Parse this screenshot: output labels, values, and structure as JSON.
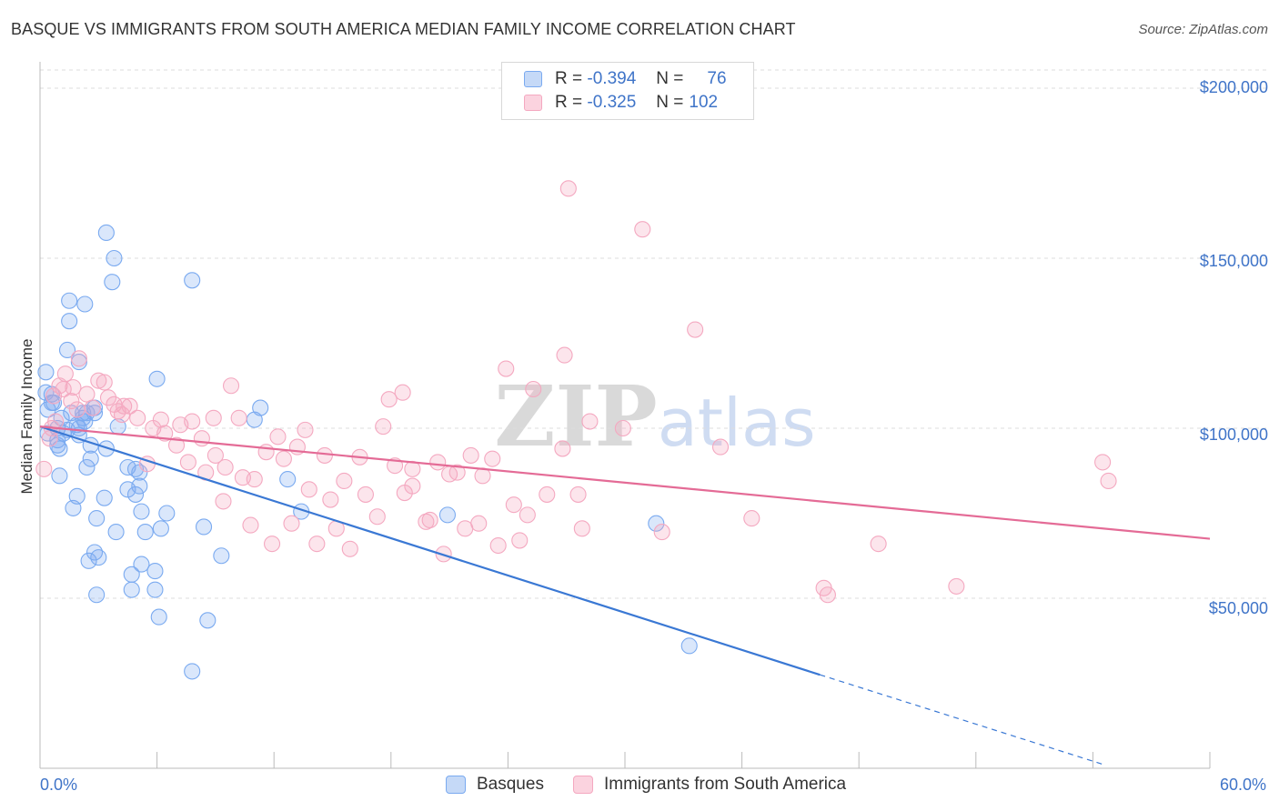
{
  "title": "BASQUE VS IMMIGRANTS FROM SOUTH AMERICA MEDIAN FAMILY INCOME CORRELATION CHART",
  "source": "Source: ZipAtlas.com",
  "watermark": "ZIPatlas",
  "legend_top": {
    "rows": [
      {
        "r_label": "R =",
        "r_value": "-0.394",
        "n_label": "N =",
        "n_value": "76",
        "color": "#7aaaf0"
      },
      {
        "r_label": "R =",
        "r_value": "-0.325",
        "n_label": "N =",
        "n_value": "102",
        "color": "#f4a8c0"
      }
    ]
  },
  "chart_data": {
    "type": "scatter",
    "xlabel": "",
    "ylabel": "Median Family Income",
    "xlim": [
      0,
      60
    ],
    "ylim": [
      0,
      210000
    ],
    "x_tick_labels": [
      "0.0%",
      "60.0%"
    ],
    "y_tick_labels": [
      "$50,000",
      "$100,000",
      "$150,000",
      "$200,000"
    ],
    "y_ticks": [
      50000,
      100000,
      150000,
      200000
    ],
    "grid": true,
    "legend_position": "bottom",
    "series": [
      {
        "name": "Basques",
        "color": "#7aaaf0",
        "line_color": "#3a78d4",
        "trend": {
          "x": [
            0,
            40
          ],
          "y": [
            100500,
            27500
          ],
          "dashed_to": [
            54.6,
            1000
          ]
        },
        "points": [
          [
            0.3,
            116500
          ],
          [
            0.3,
            110500
          ],
          [
            0.4,
            105500
          ],
          [
            0.4,
            98500
          ],
          [
            0.6,
            110000
          ],
          [
            0.6,
            107500
          ],
          [
            0.9,
            100000
          ],
          [
            0.9,
            96500
          ],
          [
            1.0,
            86000
          ],
          [
            1.0,
            94000
          ],
          [
            1.1,
            103000
          ],
          [
            1.2,
            98500
          ],
          [
            1.4,
            123000
          ],
          [
            1.5,
            131500
          ],
          [
            1.5,
            137500
          ],
          [
            1.6,
            104500
          ],
          [
            1.7,
            76500
          ],
          [
            1.9,
            101000
          ],
          [
            2.0,
            119500
          ],
          [
            2.0,
            98000
          ],
          [
            2.2,
            103000
          ],
          [
            2.2,
            104500
          ],
          [
            2.3,
            102000
          ],
          [
            2.3,
            136500
          ],
          [
            2.4,
            104500
          ],
          [
            2.4,
            88500
          ],
          [
            2.5,
            61000
          ],
          [
            2.6,
            91000
          ],
          [
            2.6,
            95000
          ],
          [
            2.8,
            106000
          ],
          [
            2.8,
            104500
          ],
          [
            2.8,
            63500
          ],
          [
            2.9,
            73500
          ],
          [
            3.0,
            62000
          ],
          [
            2.9,
            51000
          ],
          [
            3.3,
            79500
          ],
          [
            3.4,
            157500
          ],
          [
            3.4,
            94000
          ],
          [
            3.7,
            143000
          ],
          [
            3.8,
            150000
          ],
          [
            3.9,
            69500
          ],
          [
            4.0,
            100500
          ],
          [
            4.5,
            88500
          ],
          [
            4.5,
            82000
          ],
          [
            4.7,
            52500
          ],
          [
            4.7,
            57000
          ],
          [
            4.9,
            80500
          ],
          [
            5.1,
            83000
          ],
          [
            5.1,
            87000
          ],
          [
            5.2,
            75500
          ],
          [
            5.2,
            60000
          ],
          [
            5.4,
            69500
          ],
          [
            5.9,
            58000
          ],
          [
            5.9,
            52500
          ],
          [
            6.0,
            114500
          ],
          [
            6.1,
            44500
          ],
          [
            6.2,
            70500
          ],
          [
            6.5,
            75000
          ],
          [
            7.8,
            143500
          ],
          [
            7.8,
            28500
          ],
          [
            8.4,
            71000
          ],
          [
            8.6,
            43500
          ],
          [
            9.3,
            62500
          ],
          [
            11.0,
            102500
          ],
          [
            11.3,
            106000
          ],
          [
            12.7,
            85000
          ],
          [
            13.4,
            75500
          ],
          [
            20.9,
            74500
          ],
          [
            31.6,
            72000
          ],
          [
            33.3,
            36000
          ],
          [
            0.7,
            107500
          ],
          [
            1.4,
            99500
          ],
          [
            4.9,
            88000
          ],
          [
            1.9,
            80000
          ],
          [
            2.0,
            100000
          ],
          [
            0.9,
            95000
          ]
        ]
      },
      {
        "name": "Immigrants from South America",
        "color": "#f4a8c0",
        "line_color": "#e46b96",
        "trend": {
          "x": [
            0,
            60
          ],
          "y": [
            100500,
            67500
          ]
        },
        "points": [
          [
            0.2,
            88000
          ],
          [
            0.5,
            97000
          ],
          [
            0.6,
            100000
          ],
          [
            0.7,
            109500
          ],
          [
            1.0,
            112500
          ],
          [
            1.2,
            111500
          ],
          [
            1.3,
            116000
          ],
          [
            1.6,
            108000
          ],
          [
            1.7,
            112000
          ],
          [
            1.9,
            105500
          ],
          [
            2.0,
            120500
          ],
          [
            2.4,
            110000
          ],
          [
            2.7,
            106000
          ],
          [
            3.0,
            114000
          ],
          [
            3.3,
            113500
          ],
          [
            3.5,
            109000
          ],
          [
            3.8,
            107000
          ],
          [
            4.0,
            105000
          ],
          [
            4.2,
            104000
          ],
          [
            4.3,
            106500
          ],
          [
            4.6,
            106500
          ],
          [
            5.0,
            103000
          ],
          [
            5.5,
            89500
          ],
          [
            5.8,
            100000
          ],
          [
            6.2,
            102500
          ],
          [
            6.4,
            98500
          ],
          [
            7.0,
            95000
          ],
          [
            7.2,
            101000
          ],
          [
            7.6,
            90000
          ],
          [
            7.8,
            102000
          ],
          [
            8.3,
            97000
          ],
          [
            8.5,
            87000
          ],
          [
            8.9,
            103000
          ],
          [
            9.4,
            78500
          ],
          [
            9.5,
            88500
          ],
          [
            9.8,
            112500
          ],
          [
            10.2,
            103000
          ],
          [
            10.4,
            85500
          ],
          [
            10.8,
            71500
          ],
          [
            11.0,
            85000
          ],
          [
            11.6,
            93000
          ],
          [
            11.9,
            66000
          ],
          [
            12.2,
            97500
          ],
          [
            12.5,
            91000
          ],
          [
            12.9,
            72000
          ],
          [
            13.2,
            94500
          ],
          [
            13.6,
            99500
          ],
          [
            13.8,
            82000
          ],
          [
            14.2,
            66000
          ],
          [
            14.6,
            92000
          ],
          [
            14.9,
            79000
          ],
          [
            15.2,
            70500
          ],
          [
            15.6,
            84500
          ],
          [
            15.9,
            64500
          ],
          [
            16.4,
            91500
          ],
          [
            16.7,
            80500
          ],
          [
            17.3,
            74000
          ],
          [
            17.6,
            100500
          ],
          [
            17.9,
            108500
          ],
          [
            18.2,
            89000
          ],
          [
            18.6,
            110500
          ],
          [
            18.7,
            81000
          ],
          [
            19.1,
            83000
          ],
          [
            19.8,
            72500
          ],
          [
            20.0,
            73000
          ],
          [
            20.4,
            90000
          ],
          [
            20.7,
            63000
          ],
          [
            21.0,
            86500
          ],
          [
            21.4,
            87000
          ],
          [
            21.8,
            70500
          ],
          [
            22.1,
            92000
          ],
          [
            22.5,
            72000
          ],
          [
            22.7,
            86000
          ],
          [
            23.2,
            91000
          ],
          [
            23.5,
            65500
          ],
          [
            23.9,
            117500
          ],
          [
            24.3,
            77500
          ],
          [
            24.6,
            67000
          ],
          [
            25.0,
            74500
          ],
          [
            25.3,
            111500
          ],
          [
            26.0,
            80500
          ],
          [
            26.8,
            94000
          ],
          [
            26.9,
            121500
          ],
          [
            27.1,
            170500
          ],
          [
            27.6,
            80500
          ],
          [
            27.8,
            70500
          ],
          [
            28.2,
            102000
          ],
          [
            29.9,
            100000
          ],
          [
            30.9,
            158500
          ],
          [
            31.9,
            69500
          ],
          [
            33.6,
            129000
          ],
          [
            34.9,
            94500
          ],
          [
            36.5,
            73500
          ],
          [
            40.2,
            53000
          ],
          [
            40.4,
            51000
          ],
          [
            43.0,
            66000
          ],
          [
            47.0,
            53500
          ],
          [
            54.5,
            90000
          ],
          [
            54.8,
            84500
          ],
          [
            19.1,
            88000
          ],
          [
            9.0,
            92000
          ],
          [
            0.8,
            102000
          ]
        ]
      }
    ]
  }
}
